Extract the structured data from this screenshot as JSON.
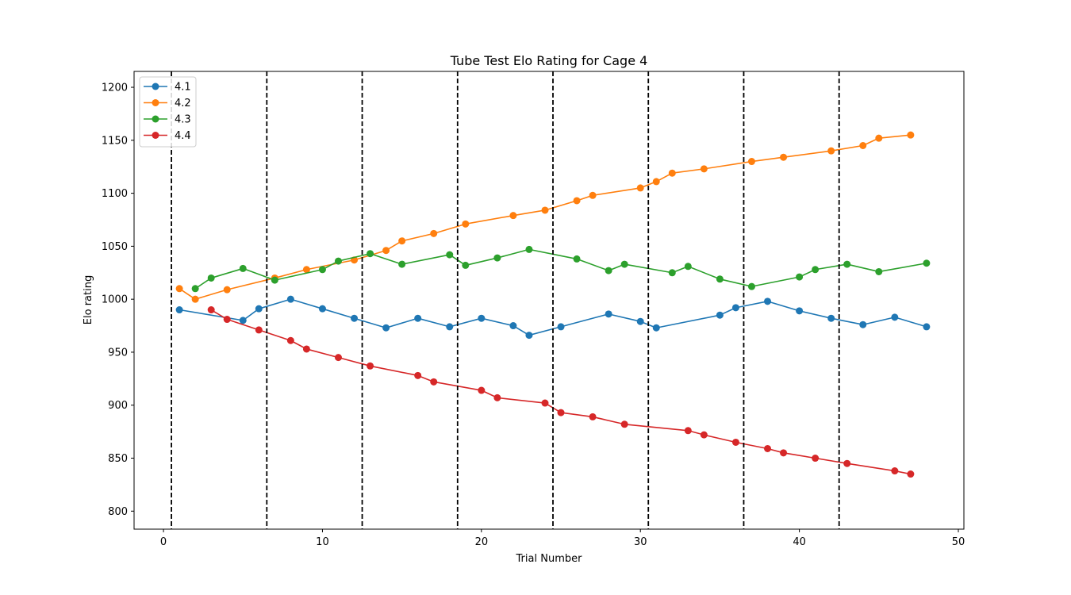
{
  "chart_data": {
    "type": "line",
    "title": "Tube Test Elo Rating for  Cage 4",
    "xlabel": "Trial Number",
    "ylabel": "Elo rating",
    "xlim": [
      -1.85,
      50.35
    ],
    "ylim": [
      783,
      1215
    ],
    "xticks": [
      0,
      10,
      20,
      30,
      40,
      50
    ],
    "yticks": [
      800,
      850,
      900,
      950,
      1000,
      1050,
      1100,
      1150,
      1200
    ],
    "vlines": [
      0.5,
      6.5,
      12.5,
      18.5,
      24.5,
      30.5,
      36.5,
      42.5
    ],
    "grid": false,
    "legend_position": "top-left",
    "series": [
      {
        "name": "4.1",
        "color": "#1f77b4",
        "x": [
          1,
          5,
          6,
          8,
          10,
          12,
          14,
          16,
          18,
          20,
          22,
          23,
          25,
          28,
          30,
          31,
          35,
          36,
          38,
          40,
          42,
          44,
          46,
          48
        ],
        "y": [
          990,
          980,
          991,
          1000,
          991,
          982,
          973,
          982,
          974,
          982,
          975,
          966,
          974,
          986,
          979,
          973,
          985,
          992,
          998,
          989,
          982,
          976,
          983,
          974
        ]
      },
      {
        "name": "4.2",
        "color": "#ff7f0e",
        "x": [
          1,
          2,
          4,
          7,
          9,
          12,
          14,
          15,
          17,
          19,
          22,
          24,
          26,
          27,
          30,
          31,
          32,
          34,
          37,
          39,
          42,
          44,
          45,
          47
        ],
        "y": [
          1010,
          1000,
          1009,
          1020,
          1028,
          1037,
          1046,
          1055,
          1062,
          1071,
          1079,
          1084,
          1093,
          1098,
          1105,
          1111,
          1119,
          1123,
          1130,
          1134,
          1140,
          1145,
          1152,
          1155
        ]
      },
      {
        "name": "4.3",
        "color": "#2ca02c",
        "x": [
          2,
          3,
          5,
          7,
          10,
          11,
          13,
          15,
          18,
          19,
          21,
          23,
          26,
          28,
          29,
          32,
          33,
          35,
          37,
          40,
          41,
          43,
          45,
          48
        ],
        "y": [
          1010,
          1020,
          1029,
          1018,
          1028,
          1036,
          1043,
          1033,
          1042,
          1032,
          1039,
          1047,
          1038,
          1027,
          1033,
          1025,
          1031,
          1019,
          1012,
          1021,
          1028,
          1033,
          1026,
          1034
        ]
      },
      {
        "name": "4.4",
        "color": "#d62728",
        "x": [
          3,
          4,
          6,
          8,
          9,
          11,
          13,
          16,
          17,
          20,
          21,
          24,
          25,
          27,
          29,
          33,
          34,
          36,
          38,
          39,
          41,
          43,
          46,
          47
        ],
        "y": [
          990,
          981,
          971,
          961,
          953,
          945,
          937,
          928,
          922,
          914,
          907,
          902,
          893,
          889,
          882,
          876,
          872,
          865,
          859,
          855,
          850,
          845,
          838,
          835
        ]
      }
    ]
  }
}
